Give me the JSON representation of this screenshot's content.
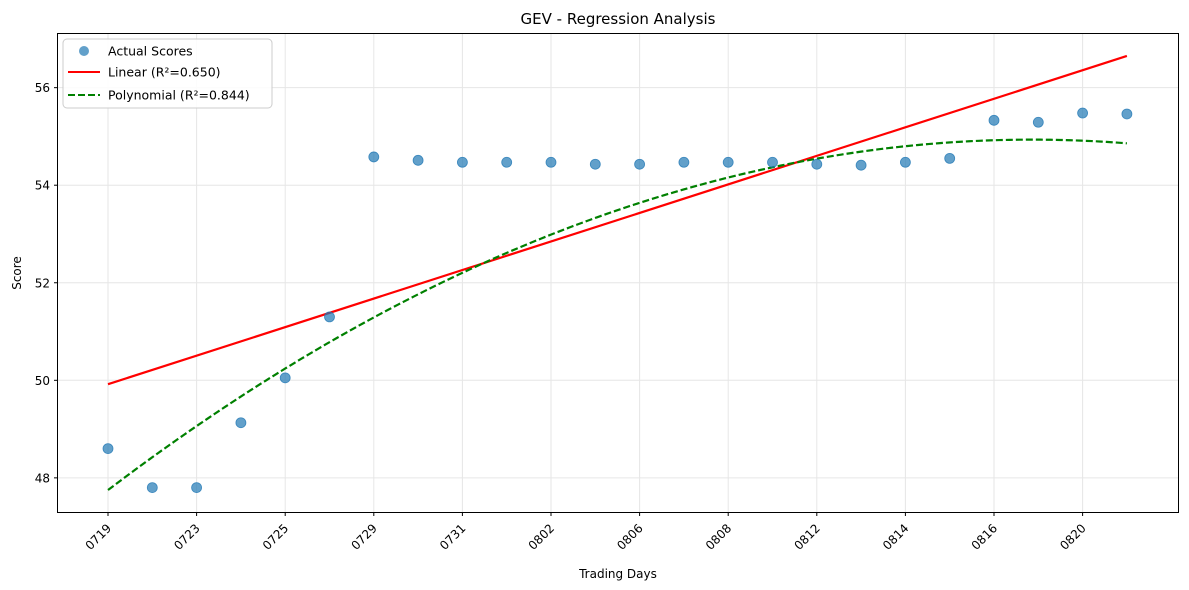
{
  "chart_data": {
    "type": "scatter",
    "title": "GEV - Regression Analysis",
    "xlabel": "Trading Days",
    "ylabel": "Score",
    "grid": true,
    "legend_position": "top-left",
    "x_tick_labels": [
      "0719",
      "0723",
      "0725",
      "0729",
      "0731",
      "0802",
      "0806",
      "0808",
      "0812",
      "0814",
      "0816",
      "0820"
    ],
    "y_ticks": [
      48,
      50,
      52,
      54,
      56
    ],
    "ylim": [
      47.3,
      57.1
    ],
    "series": [
      {
        "name": "Actual Scores",
        "kind": "scatter",
        "color": "#1f77b4",
        "values": [
          48.6,
          47.8,
          47.8,
          49.13,
          50.05,
          51.3,
          54.58,
          54.51,
          54.47,
          54.47,
          54.47,
          54.43,
          54.43,
          54.47,
          54.47,
          54.47,
          54.43,
          54.41,
          54.47,
          54.55,
          55.33,
          55.29,
          55.48,
          55.46
        ]
      },
      {
        "name": "Linear (R²=0.650)",
        "kind": "line",
        "color": "#ff0000",
        "style": "solid",
        "start": 49.92,
        "end": 56.65
      },
      {
        "name": "Polynomial (R²=0.844)",
        "kind": "curve",
        "color": "#008000",
        "style": "dashed",
        "coefficients": [
          47.75,
          0.6888,
          -0.01651
        ]
      }
    ]
  }
}
